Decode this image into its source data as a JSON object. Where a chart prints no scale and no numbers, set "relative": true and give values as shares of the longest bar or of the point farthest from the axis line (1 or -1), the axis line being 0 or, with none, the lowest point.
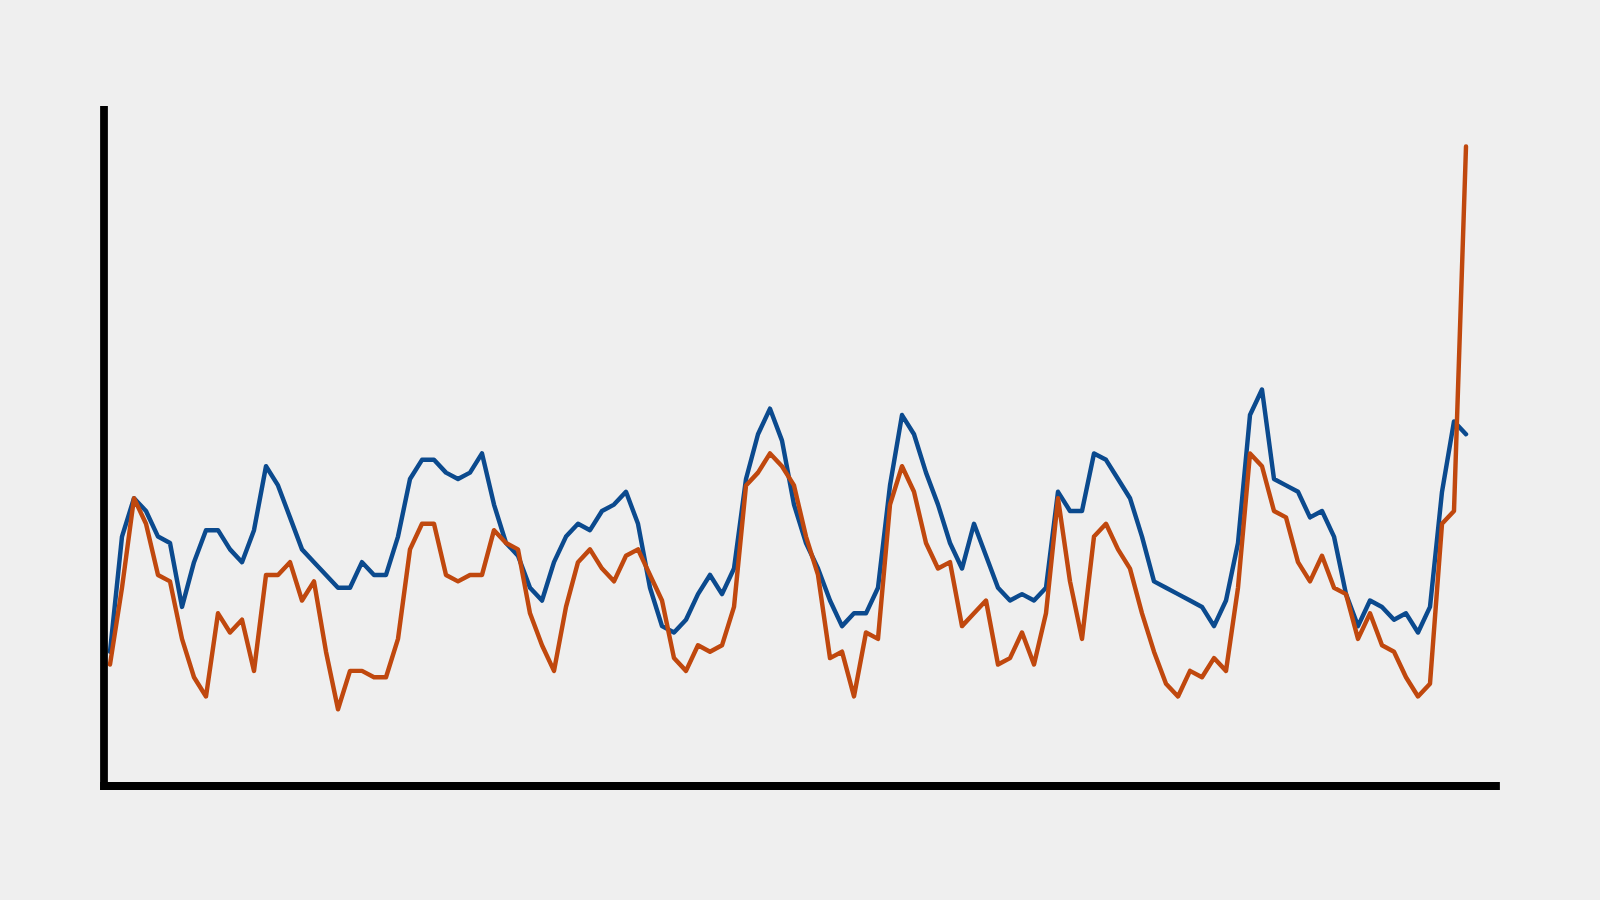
{
  "chart_data": {
    "type": "line",
    "relative": true,
    "categories": [
      null,
      null,
      null,
      null,
      null,
      null,
      null,
      null,
      null,
      null,
      null,
      null,
      null,
      null,
      null,
      null,
      null,
      null,
      null,
      null,
      null,
      null,
      null,
      null,
      null,
      null,
      null,
      null,
      null,
      null,
      null,
      null,
      null,
      null,
      null,
      null,
      null,
      null,
      null,
      null,
      null,
      null,
      null,
      null,
      null,
      null,
      null,
      null,
      null,
      null,
      null,
      null,
      null,
      null,
      null,
      null,
      null,
      null,
      null,
      null,
      null,
      null,
      null,
      null,
      null,
      null,
      null,
      null,
      null,
      null,
      null,
      null,
      null,
      null,
      null,
      null,
      null,
      null,
      null,
      null,
      null,
      null,
      null,
      null,
      null,
      null,
      null,
      null,
      null,
      null,
      null,
      null,
      null,
      null,
      null,
      null,
      null,
      null,
      null,
      null,
      null,
      null,
      null,
      null,
      null,
      null,
      null,
      null,
      null,
      null,
      null,
      null,
      null,
      null
    ],
    "series": [
      {
        "color": "#0b4a8e",
        "values": [
          0.21,
          0.39,
          0.45,
          0.43,
          0.39,
          0.38,
          0.28,
          0.35,
          0.4,
          0.4,
          0.37,
          0.35,
          0.4,
          0.5,
          0.47,
          0.42,
          0.37,
          0.35,
          0.33,
          0.31,
          0.31,
          0.35,
          0.33,
          0.33,
          0.39,
          0.48,
          0.51,
          0.51,
          0.49,
          0.48,
          0.49,
          0.52,
          0.44,
          0.38,
          0.36,
          0.31,
          0.29,
          0.35,
          0.39,
          0.41,
          0.4,
          0.43,
          0.44,
          0.46,
          0.41,
          0.31,
          0.25,
          0.24,
          0.26,
          0.3,
          0.33,
          0.3,
          0.34,
          0.48,
          0.55,
          0.59,
          0.54,
          0.44,
          0.38,
          0.34,
          0.29,
          0.25,
          0.27,
          0.27,
          0.31,
          0.47,
          0.58,
          0.55,
          0.49,
          0.44,
          0.38,
          0.34,
          0.41,
          0.36,
          0.31,
          0.29,
          0.3,
          0.29,
          0.31,
          0.46,
          0.43,
          0.43,
          0.52,
          0.51,
          0.48,
          0.45,
          0.39,
          0.32,
          0.31,
          0.3,
          0.29,
          0.28,
          0.25,
          0.29,
          0.38,
          0.58,
          0.62,
          0.48,
          0.47,
          0.46,
          0.42,
          0.43,
          0.39,
          0.3,
          0.25,
          0.29,
          0.28,
          0.26,
          0.27,
          0.24,
          0.28,
          0.46,
          0.57,
          0.55
        ]
      },
      {
        "color": "#c0480e",
        "values": [
          0.19,
          0.31,
          0.45,
          0.41,
          0.33,
          0.32,
          0.23,
          0.17,
          0.14,
          0.27,
          0.24,
          0.26,
          0.18,
          0.33,
          0.33,
          0.35,
          0.29,
          0.32,
          0.21,
          0.12,
          0.18,
          0.18,
          0.17,
          0.17,
          0.23,
          0.37,
          0.41,
          0.41,
          0.33,
          0.32,
          0.33,
          0.33,
          0.4,
          0.38,
          0.37,
          0.27,
          0.22,
          0.18,
          0.28,
          0.35,
          0.37,
          0.34,
          0.32,
          0.36,
          0.37,
          0.33,
          0.29,
          0.2,
          0.18,
          0.22,
          0.21,
          0.22,
          0.28,
          0.47,
          0.49,
          0.52,
          0.5,
          0.47,
          0.39,
          0.33,
          0.2,
          0.21,
          0.14,
          0.24,
          0.23,
          0.44,
          0.5,
          0.46,
          0.38,
          0.34,
          0.35,
          0.25,
          0.27,
          0.29,
          0.19,
          0.2,
          0.24,
          0.19,
          0.27,
          0.45,
          0.32,
          0.23,
          0.39,
          0.41,
          0.37,
          0.34,
          0.27,
          0.21,
          0.16,
          0.14,
          0.18,
          0.17,
          0.2,
          0.18,
          0.31,
          0.52,
          0.5,
          0.43,
          0.42,
          0.35,
          0.32,
          0.36,
          0.31,
          0.3,
          0.23,
          0.27,
          0.22,
          0.21,
          0.17,
          0.14,
          0.16,
          0.41,
          0.43,
          1.0
        ]
      }
    ]
  }
}
